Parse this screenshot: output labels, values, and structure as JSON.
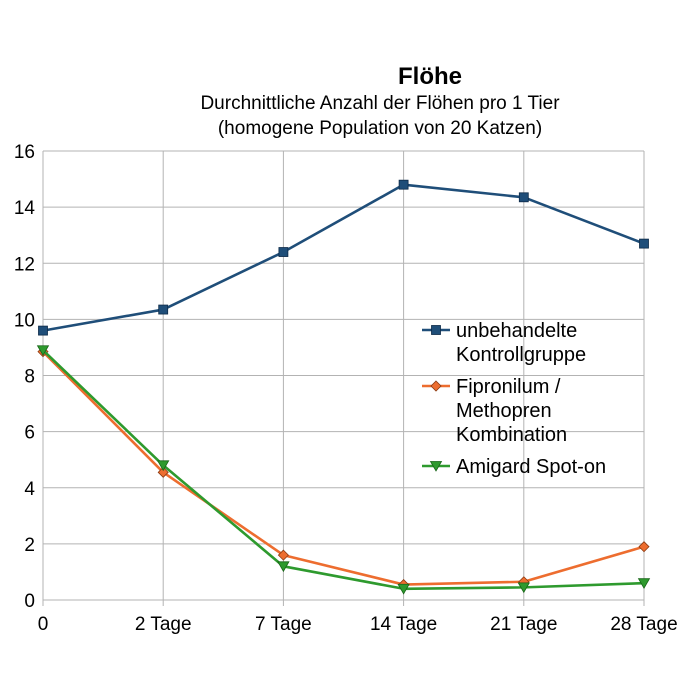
{
  "chart_data": {
    "type": "line",
    "title": "Flöhe",
    "subtitle_lines": [
      "Durchnittliche Anzahl der Flöhen pro 1 Tier",
      "(homogene Population von 20 Katzen)"
    ],
    "categories": [
      "0",
      "2 Tage",
      "7 Tage",
      "14 Tage",
      "21 Tage",
      "28 Tage"
    ],
    "ylim": [
      0,
      16
    ],
    "yticks": [
      "0",
      "2",
      "4",
      "6",
      "8",
      "10",
      "12",
      "14",
      "16"
    ],
    "grid": true,
    "legend_position": "right",
    "series": [
      {
        "name_lines": [
          "unbehandelte",
          "Kontrollgruppe"
        ],
        "color": "#1f4e79",
        "marker": "square",
        "values": [
          9.6,
          10.35,
          12.4,
          14.8,
          14.35,
          12.7
        ]
      },
      {
        "name_lines": [
          "Fipronilum /",
          "Methopren",
          "Kombination"
        ],
        "color": "#ed6d2f",
        "marker": "diamond",
        "values": [
          8.85,
          4.55,
          1.6,
          0.55,
          0.65,
          1.9
        ]
      },
      {
        "name_lines": [
          "Amigard Spot-on"
        ],
        "color": "#2e9a2e",
        "marker": "triangle-down",
        "values": [
          8.9,
          4.8,
          1.2,
          0.4,
          0.45,
          0.6
        ]
      }
    ]
  }
}
